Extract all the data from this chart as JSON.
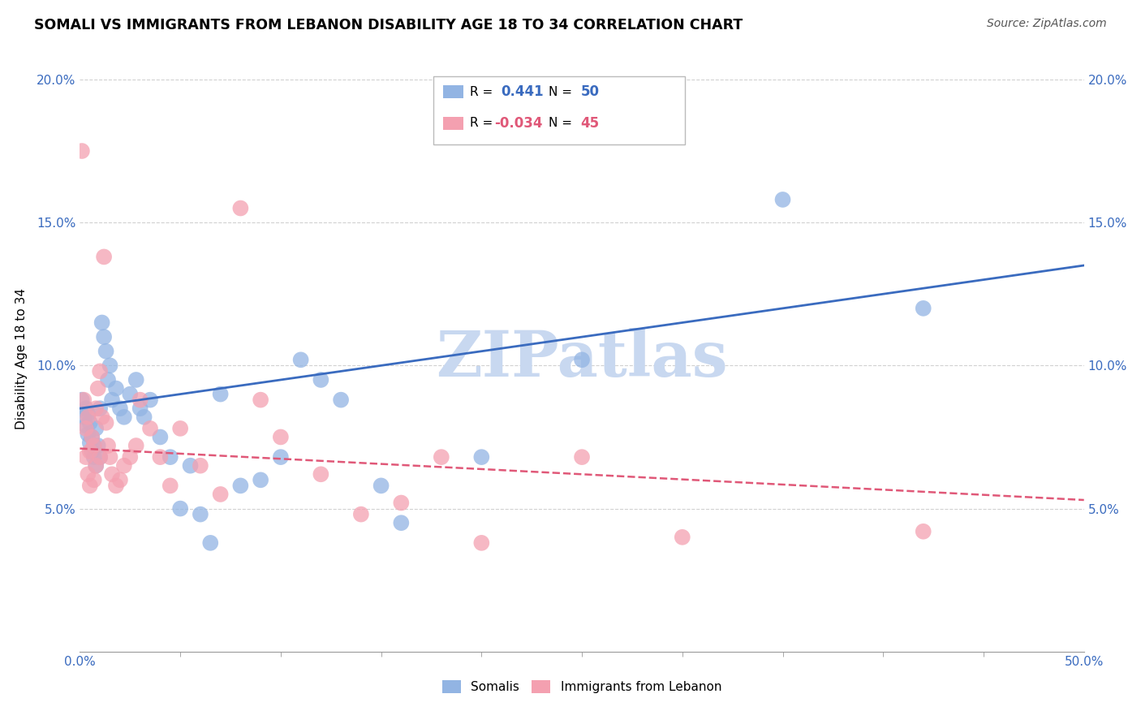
{
  "title": "SOMALI VS IMMIGRANTS FROM LEBANON DISABILITY AGE 18 TO 34 CORRELATION CHART",
  "source": "Source: ZipAtlas.com",
  "ylabel": "Disability Age 18 to 34",
  "xlim": [
    0.0,
    0.5
  ],
  "ylim": [
    0.0,
    0.205
  ],
  "xtick_positions": [
    0.0,
    0.5
  ],
  "xtick_labels": [
    "0.0%",
    "50.0%"
  ],
  "xtick_minor": [
    0.05,
    0.1,
    0.15,
    0.2,
    0.25,
    0.3,
    0.35,
    0.4,
    0.45
  ],
  "ytick_positions": [
    0.05,
    0.1,
    0.15,
    0.2
  ],
  "ytick_labels": [
    "5.0%",
    "10.0%",
    "15.0%",
    "20.0%"
  ],
  "somali_R": 0.441,
  "somali_N": 50,
  "lebanon_R": -0.034,
  "lebanon_N": 45,
  "somali_color": "#92b4e3",
  "lebanon_color": "#f4a0b0",
  "somali_line_color": "#3a6bbf",
  "lebanon_line_color": "#e05878",
  "watermark": "ZIPatlas",
  "watermark_color": "#c8d8f0",
  "legend_label_somali": "Somalis",
  "legend_label_lebanon": "Immigrants from Lebanon",
  "somali_x": [
    0.001,
    0.002,
    0.003,
    0.003,
    0.004,
    0.004,
    0.005,
    0.005,
    0.006,
    0.006,
    0.007,
    0.007,
    0.008,
    0.008,
    0.009,
    0.01,
    0.01,
    0.011,
    0.012,
    0.013,
    0.014,
    0.015,
    0.016,
    0.018,
    0.02,
    0.022,
    0.025,
    0.028,
    0.03,
    0.032,
    0.035,
    0.04,
    0.045,
    0.05,
    0.055,
    0.06,
    0.065,
    0.07,
    0.08,
    0.09,
    0.1,
    0.11,
    0.12,
    0.13,
    0.15,
    0.16,
    0.2,
    0.25,
    0.35,
    0.42
  ],
  "somali_y": [
    0.088,
    0.082,
    0.085,
    0.079,
    0.083,
    0.076,
    0.08,
    0.073,
    0.075,
    0.07,
    0.072,
    0.068,
    0.065,
    0.078,
    0.072,
    0.068,
    0.085,
    0.115,
    0.11,
    0.105,
    0.095,
    0.1,
    0.088,
    0.092,
    0.085,
    0.082,
    0.09,
    0.095,
    0.085,
    0.082,
    0.088,
    0.075,
    0.068,
    0.05,
    0.065,
    0.048,
    0.038,
    0.09,
    0.058,
    0.06,
    0.068,
    0.102,
    0.095,
    0.088,
    0.058,
    0.045,
    0.068,
    0.102,
    0.158,
    0.12
  ],
  "lebanon_x": [
    0.001,
    0.002,
    0.003,
    0.003,
    0.004,
    0.004,
    0.005,
    0.005,
    0.006,
    0.007,
    0.007,
    0.008,
    0.008,
    0.009,
    0.01,
    0.01,
    0.011,
    0.012,
    0.013,
    0.014,
    0.015,
    0.016,
    0.018,
    0.02,
    0.022,
    0.025,
    0.028,
    0.03,
    0.035,
    0.04,
    0.045,
    0.05,
    0.06,
    0.07,
    0.08,
    0.09,
    0.1,
    0.12,
    0.14,
    0.16,
    0.18,
    0.2,
    0.25,
    0.3,
    0.42
  ],
  "lebanon_y": [
    0.175,
    0.088,
    0.078,
    0.068,
    0.082,
    0.062,
    0.07,
    0.058,
    0.075,
    0.072,
    0.06,
    0.085,
    0.065,
    0.092,
    0.068,
    0.098,
    0.082,
    0.138,
    0.08,
    0.072,
    0.068,
    0.062,
    0.058,
    0.06,
    0.065,
    0.068,
    0.072,
    0.088,
    0.078,
    0.068,
    0.058,
    0.078,
    0.065,
    0.055,
    0.155,
    0.088,
    0.075,
    0.062,
    0.048,
    0.052,
    0.068,
    0.038,
    0.068,
    0.04,
    0.042
  ]
}
